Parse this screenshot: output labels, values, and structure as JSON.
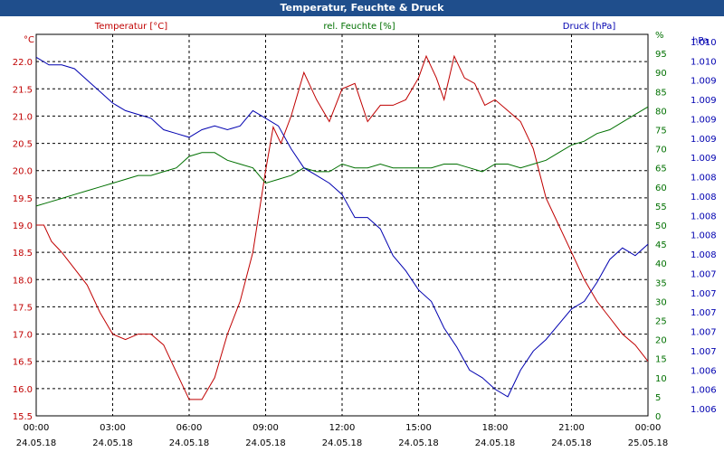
{
  "title": "Temperatur, Feuchte & Druck",
  "colors": {
    "temperature": "#c00000",
    "humidity": "#007000",
    "pressure": "#0000b0",
    "titlebar": "#1f4e8c"
  },
  "chart_data": {
    "type": "line",
    "title": "Temperatur, Feuchte & Druck",
    "grid": true,
    "x_ticks": [
      {
        "time": "00:00",
        "date": "24.05.18",
        "h": 0
      },
      {
        "time": "03:00",
        "date": "24.05.18",
        "h": 3
      },
      {
        "time": "06:00",
        "date": "24.05.18",
        "h": 6
      },
      {
        "time": "09:00",
        "date": "24.05.18",
        "h": 9
      },
      {
        "time": "12:00",
        "date": "24.05.18",
        "h": 12
      },
      {
        "time": "15:00",
        "date": "24.05.18",
        "h": 15
      },
      {
        "time": "18:00",
        "date": "24.05.18",
        "h": 18
      },
      {
        "time": "21:00",
        "date": "24.05.18",
        "h": 21
      },
      {
        "time": "00:00",
        "date": "25.05.18",
        "h": 24
      }
    ],
    "xlim": [
      0,
      24
    ],
    "axes": {
      "temperature": {
        "unit": "°C",
        "label": "Temperatur [°C]",
        "ylim": [
          15.5,
          22.5
        ],
        "ticks": [
          "15.5",
          "16.0",
          "16.5",
          "17.0",
          "17.5",
          "18.0",
          "18.5",
          "19.0",
          "19.5",
          "20.0",
          "20.5",
          "21.0",
          "21.5",
          "22.0"
        ]
      },
      "humidity": {
        "unit": "%",
        "label": "rel. Feuchte [%]",
        "ylim": [
          0,
          100
        ],
        "ticks": [
          "0",
          "5",
          "10",
          "15",
          "20",
          "25",
          "30",
          "35",
          "40",
          "45",
          "50",
          "55",
          "60",
          "65",
          "70",
          "75",
          "80",
          "85",
          "90",
          "95",
          "%"
        ]
      },
      "pressure": {
        "unit": "hPa",
        "label": "Druck [hPa]",
        "ticks": [
          "1.006",
          "1.006",
          "1.006",
          "1.007",
          "1.007",
          "1.007",
          "1.007",
          "1.007",
          "1.008",
          "1.008",
          "1.008",
          "1.008",
          "1.008",
          "1.009",
          "1.009",
          "1.009",
          "1.009",
          "1.009",
          "1.010",
          "1.010"
        ]
      }
    },
    "series": [
      {
        "name": "Temperatur [°C]",
        "axis": "temperature",
        "x": [
          0,
          0.3,
          0.6,
          1,
          1.5,
          2,
          2.5,
          3,
          3.5,
          4,
          4.5,
          5,
          5.5,
          6,
          6.5,
          7,
          7.5,
          8,
          8.5,
          9,
          9.3,
          9.6,
          10,
          10.5,
          11,
          11.5,
          12,
          12.5,
          13,
          13.5,
          14,
          14.5,
          15,
          15.3,
          15.7,
          16,
          16.4,
          16.8,
          17.2,
          17.6,
          18,
          18.5,
          19,
          19.5,
          20,
          20.5,
          21,
          21.5,
          22,
          22.5,
          23,
          23.5,
          24
        ],
        "y": [
          19.0,
          19.0,
          18.7,
          18.5,
          18.2,
          17.9,
          17.4,
          17.0,
          16.9,
          17.0,
          17.0,
          16.8,
          16.3,
          15.8,
          15.8,
          16.2,
          17.0,
          17.6,
          18.5,
          20.0,
          20.8,
          20.5,
          21.0,
          21.8,
          21.3,
          20.9,
          21.5,
          21.6,
          20.9,
          21.2,
          21.2,
          21.3,
          21.7,
          22.1,
          21.7,
          21.3,
          22.1,
          21.7,
          21.6,
          21.2,
          21.3,
          21.1,
          20.9,
          20.4,
          19.5,
          19.0,
          18.5,
          18.0,
          17.6,
          17.3,
          17.0,
          16.8,
          16.5
        ]
      },
      {
        "name": "rel. Feuchte [%]",
        "axis": "humidity",
        "x": [
          0,
          0.5,
          1,
          1.5,
          2,
          2.5,
          3,
          3.5,
          4,
          4.5,
          5,
          5.5,
          6,
          6.5,
          7,
          7.5,
          8,
          8.5,
          9,
          9.5,
          10,
          10.5,
          11,
          11.5,
          12,
          12.5,
          13,
          13.5,
          14,
          14.5,
          15,
          15.5,
          16,
          16.5,
          17,
          17.5,
          18,
          18.5,
          19,
          19.5,
          20,
          20.5,
          21,
          21.5,
          22,
          22.5,
          23,
          23.5,
          24
        ],
        "y": [
          55,
          56,
          57,
          58,
          59,
          60,
          61,
          62,
          63,
          63,
          64,
          65,
          68,
          69,
          69,
          67,
          66,
          65,
          61,
          62,
          63,
          65,
          64,
          64,
          66,
          65,
          65,
          66,
          65,
          65,
          65,
          65,
          66,
          66,
          65,
          64,
          66,
          66,
          65,
          66,
          67,
          69,
          71,
          72,
          74,
          75,
          77,
          79,
          81
        ]
      },
      {
        "name": "Druck [hPa]",
        "axis": "pressure",
        "x": [
          0,
          0.5,
          1,
          1.5,
          2,
          2.5,
          3,
          3.5,
          4,
          4.5,
          5,
          5.5,
          6,
          6.5,
          7,
          7.5,
          8,
          8.5,
          9,
          9.5,
          10,
          10.5,
          11,
          11.5,
          12,
          12.5,
          13,
          13.5,
          14,
          14.5,
          15,
          15.5,
          16,
          16.5,
          17,
          17.5,
          18,
          18.5,
          19,
          19.5,
          20,
          20.5,
          21,
          21.5,
          22,
          22.5,
          23,
          23.5,
          24
        ],
        "y": [
          94,
          92,
          92,
          91,
          88,
          85,
          82,
          80,
          79,
          78,
          75,
          74,
          73,
          75,
          76,
          75,
          76,
          80,
          78,
          76,
          70,
          65,
          63,
          61,
          58,
          52,
          52,
          49,
          42,
          38,
          33,
          30,
          23,
          18,
          12,
          10,
          7,
          5,
          12,
          17,
          20,
          24,
          28,
          30,
          35,
          41,
          44,
          42,
          45
        ]
      }
    ]
  }
}
